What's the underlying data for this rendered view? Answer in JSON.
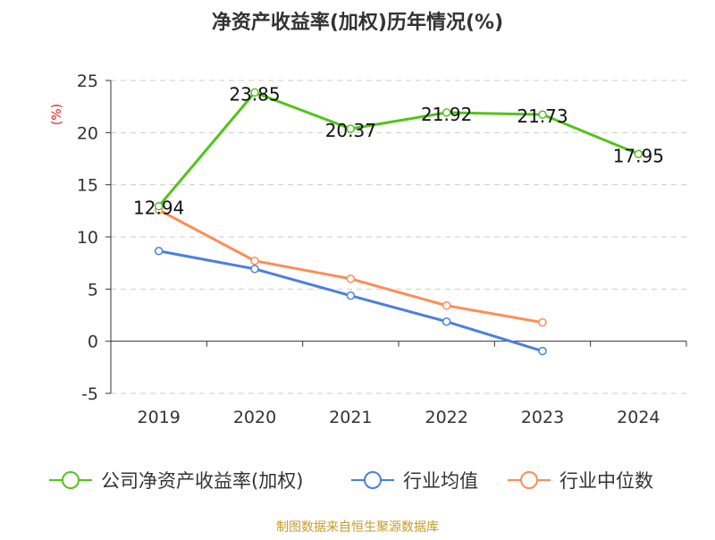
{
  "chart_data": {
    "type": "line",
    "title": "净资产收益率(加权)历年情况(%)",
    "ylabel": "(%)",
    "categories": [
      "2019",
      "2020",
      "2021",
      "2022",
      "2023",
      "2024"
    ],
    "ylim": [
      -5,
      25
    ],
    "yticks": [
      -5,
      0,
      5,
      10,
      15,
      20,
      25
    ],
    "grid": true,
    "legend_position": "bottom",
    "series": [
      {
        "name": "公司净资产收益率(加权)",
        "color": "#52c41a",
        "values": [
          12.94,
          23.85,
          20.37,
          21.92,
          21.73,
          17.95
        ],
        "labels": [
          "12.94",
          "23.85",
          "20.37",
          "21.92",
          "21.73",
          "17.95"
        ]
      },
      {
        "name": "行业均值",
        "color": "#4a7fe0",
        "values": [
          8.65,
          6.93,
          4.37,
          1.88,
          -0.94,
          null
        ]
      },
      {
        "name": "行业中位数",
        "color": "#ff8c55",
        "values": [
          12.59,
          7.71,
          5.99,
          3.42,
          1.8,
          null
        ]
      }
    ]
  },
  "source": "制图数据来自恒生聚源数据库"
}
